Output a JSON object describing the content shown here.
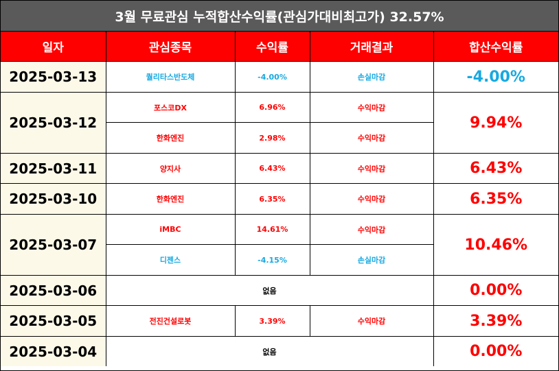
{
  "title": "3월 무료관심 누적합산수익률(관심가대비최고가) 32.57%",
  "headers": [
    "일자",
    "관심종목",
    "수익률",
    "거래결과",
    "합산수익률"
  ],
  "rows": [
    {
      "date": "2025-03-13",
      "total": "-4.00%",
      "total_color": "blue",
      "stocks": [
        {
          "name": "퀄리타스반도체",
          "rate": "-4.00%",
          "result": "손실마감",
          "color": "blue"
        }
      ]
    },
    {
      "date": "2025-03-12",
      "total": "9.94%",
      "total_color": "red",
      "stocks": [
        {
          "name": "포스코DX",
          "rate": "6.96%",
          "result": "수익마감",
          "color": "red"
        },
        {
          "name": "한화엔진",
          "rate": "2.98%",
          "result": "수익마감",
          "color": "red"
        }
      ]
    },
    {
      "date": "2025-03-11",
      "total": "6.43%",
      "total_color": "red",
      "stocks": [
        {
          "name": "양지사",
          "rate": "6.43%",
          "result": "수익마감",
          "color": "red"
        }
      ]
    },
    {
      "date": "2025-03-10",
      "total": "6.35%",
      "total_color": "red",
      "stocks": [
        {
          "name": "한화엔진",
          "rate": "6.35%",
          "result": "수익마감",
          "color": "red"
        }
      ]
    },
    {
      "date": "2025-03-07",
      "total": "10.46%",
      "total_color": "red",
      "stocks": [
        {
          "name": "iMBC",
          "rate": "14.61%",
          "result": "수익마감",
          "color": "red"
        },
        {
          "name": "디젠스",
          "rate": "-4.15%",
          "result": "손실마감",
          "color": "blue"
        }
      ]
    },
    {
      "date": "2025-03-06",
      "total": "0.00%",
      "total_color": "red",
      "none": "없음",
      "stocks": []
    },
    {
      "date": "2025-03-05",
      "total": "3.39%",
      "total_color": "red",
      "stocks": [
        {
          "name": "전진건설로봇",
          "rate": "3.39%",
          "result": "수익마감",
          "color": "red"
        }
      ]
    },
    {
      "date": "2025-03-04",
      "total": "0.00%",
      "total_color": "red",
      "none": "없음",
      "stocks": []
    }
  ]
}
